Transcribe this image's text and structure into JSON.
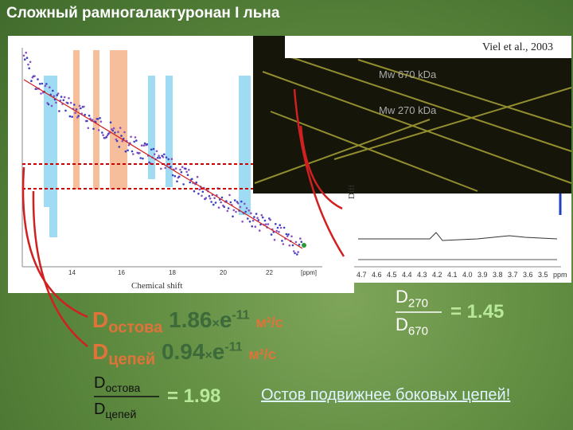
{
  "title": "Сложный рамногалактуронан I льна",
  "left_plot": {
    "x_axis_labels": [
      "14",
      "16",
      "18",
      "20",
      "22",
      "[ppm]"
    ],
    "x_axis_title": "Chemical shift"
  },
  "inset": {
    "citation": "Viel et al., 2003",
    "labels": [
      "Mw 670 kDa",
      "Mw 270 kDa"
    ],
    "side_label": "Diff"
  },
  "spectrum": {
    "x_axis_labels": [
      "4.7",
      "4.6",
      "4.5",
      "4.4",
      "4.3",
      "4.2",
      "4.1",
      "4.0",
      "3.9",
      "3.8",
      "3.7",
      "3.6",
      "3.5",
      "ppm"
    ]
  },
  "formulas": {
    "backbone": {
      "symbol": "D",
      "subscript": "остова",
      "value": "1.86",
      "times": "×",
      "base": "e",
      "exponent": "-11",
      "unit": "м²/с"
    },
    "side_chains": {
      "symbol": "D",
      "subscript": "цепей",
      "value": "0.94",
      "times": "×",
      "base": "e",
      "exponent": "-11",
      "unit": "м²/с"
    },
    "ratio_chains": {
      "numerator": {
        "symbol": "D",
        "subscript": "остова"
      },
      "denominator": {
        "symbol": "D",
        "subscript": "цепей"
      },
      "result": "= 1.98"
    },
    "ratio_mw": {
      "numerator": {
        "symbol": "D",
        "subscript": "270"
      },
      "denominator": {
        "symbol": "D",
        "subscript": "670"
      },
      "result": "= 1.45"
    }
  },
  "conclusion": "Остов подвижнее боковых цепей!"
}
